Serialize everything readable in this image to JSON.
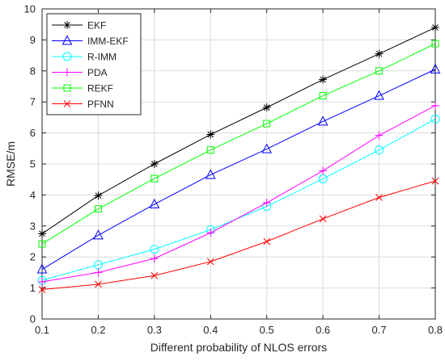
{
  "chart_data": {
    "type": "line",
    "xlabel": "Different probability of NLOS errors",
    "ylabel": "RMSE/m",
    "x": [
      0.1,
      0.2,
      0.3,
      0.4,
      0.5,
      0.6,
      0.7,
      0.8
    ],
    "xticks": [
      "0.1",
      "0.2",
      "0.3",
      "0.4",
      "0.5",
      "0.6",
      "0.7",
      "0.8"
    ],
    "yticks": [
      "0",
      "1",
      "2",
      "3",
      "4",
      "5",
      "6",
      "7",
      "8",
      "9",
      "10"
    ],
    "xlim": [
      0.1,
      0.8
    ],
    "ylim": [
      0,
      10
    ],
    "grid": true,
    "legend_position": "top-left",
    "series": [
      {
        "name": "EKF",
        "color": "#000000",
        "marker": "asterisk",
        "values": [
          2.75,
          3.98,
          5.0,
          5.95,
          6.82,
          7.72,
          8.55,
          9.4
        ]
      },
      {
        "name": "IMM-EKF",
        "color": "#0000ff",
        "marker": "triangle",
        "values": [
          1.6,
          2.7,
          3.7,
          4.65,
          5.48,
          6.37,
          7.2,
          8.05
        ]
      },
      {
        "name": "R-IMM",
        "color": "#00ffff",
        "marker": "circle",
        "values": [
          1.25,
          1.75,
          2.25,
          2.88,
          3.63,
          4.52,
          5.45,
          6.45
        ]
      },
      {
        "name": "PDA",
        "color": "#ff00ff",
        "marker": "plus",
        "values": [
          1.2,
          1.5,
          1.95,
          2.78,
          3.75,
          4.78,
          5.92,
          6.88
        ]
      },
      {
        "name": "REKF",
        "color": "#00ff00",
        "marker": "square",
        "values": [
          2.42,
          3.55,
          4.53,
          5.45,
          6.3,
          7.2,
          8.0,
          8.88
        ]
      },
      {
        "name": "PFNN",
        "color": "#ff0000",
        "marker": "x",
        "values": [
          0.95,
          1.12,
          1.4,
          1.85,
          2.5,
          3.23,
          3.92,
          4.45
        ]
      }
    ]
  }
}
